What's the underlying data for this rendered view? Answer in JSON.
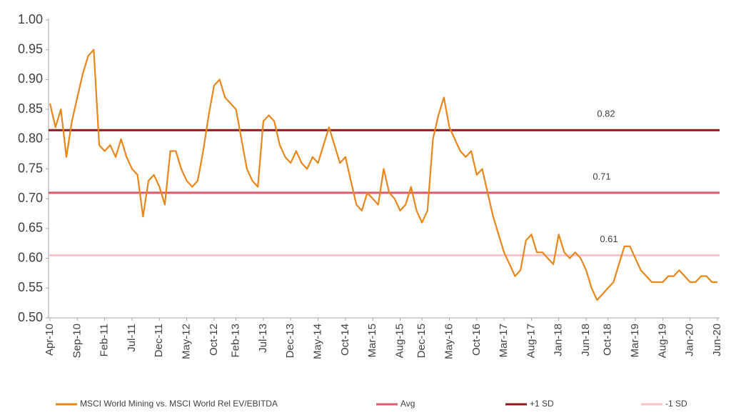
{
  "chart_data": {
    "type": "line",
    "categories": [
      "Apr-10",
      null,
      null,
      null,
      null,
      "Sep-10",
      null,
      null,
      null,
      null,
      "Feb-11",
      null,
      null,
      null,
      null,
      "Jul-11",
      null,
      null,
      null,
      null,
      "Dec-11",
      null,
      null,
      null,
      null,
      "May-12",
      null,
      null,
      null,
      null,
      "Oct-12",
      null,
      null,
      null,
      "Feb-13",
      null,
      null,
      null,
      null,
      "Jul-13",
      null,
      null,
      null,
      null,
      "Dec-13",
      null,
      null,
      null,
      null,
      "May-14",
      null,
      null,
      null,
      null,
      "Oct-14",
      null,
      null,
      null,
      null,
      "Mar-15",
      null,
      null,
      null,
      null,
      "Aug-15",
      null,
      null,
      null,
      "Dec-15",
      null,
      null,
      null,
      null,
      "May-16",
      null,
      null,
      null,
      null,
      "Oct-16",
      null,
      null,
      null,
      null,
      "Mar-17",
      null,
      null,
      null,
      null,
      "Aug-17",
      null,
      null,
      null,
      null,
      "Jan-18",
      null,
      null,
      null,
      null,
      "Jun-18",
      null,
      null,
      null,
      "Oct-18",
      null,
      null,
      null,
      null,
      "Mar-19",
      null,
      null,
      null,
      null,
      "Aug-19",
      null,
      null,
      null,
      null,
      "Jan-20",
      null,
      null,
      null,
      null,
      "Jun-20"
    ],
    "series": [
      {
        "name": "MSCI World Mining vs. MSCI World Rel EV/EBITDA",
        "color": "#e8861a",
        "values": [
          0.86,
          0.82,
          0.85,
          0.77,
          0.83,
          0.87,
          0.91,
          0.94,
          0.95,
          0.79,
          0.78,
          0.79,
          0.77,
          0.8,
          0.77,
          0.75,
          0.74,
          0.67,
          0.73,
          0.74,
          0.72,
          0.69,
          0.78,
          0.78,
          0.75,
          0.73,
          0.72,
          0.73,
          0.78,
          0.84,
          0.89,
          0.9,
          0.87,
          0.86,
          0.85,
          0.8,
          0.75,
          0.73,
          0.72,
          0.83,
          0.84,
          0.83,
          0.79,
          0.77,
          0.76,
          0.78,
          0.76,
          0.75,
          0.77,
          0.76,
          0.79,
          0.82,
          0.79,
          0.76,
          0.77,
          0.73,
          0.69,
          0.68,
          0.71,
          0.7,
          0.69,
          0.75,
          0.71,
          0.7,
          0.68,
          0.69,
          0.72,
          0.68,
          0.66,
          0.68,
          0.8,
          0.84,
          0.87,
          0.82,
          0.8,
          0.78,
          0.77,
          0.78,
          0.74,
          0.75,
          0.71,
          0.67,
          0.64,
          0.61,
          0.59,
          0.57,
          0.58,
          0.63,
          0.64,
          0.61,
          0.61,
          0.6,
          0.59,
          0.64,
          0.61,
          0.6,
          0.61,
          0.6,
          0.58,
          0.55,
          0.53,
          0.54,
          0.55,
          0.56,
          0.59,
          0.62,
          0.62,
          0.6,
          0.58,
          0.57,
          0.56,
          0.56,
          0.56,
          0.57,
          0.57,
          0.58,
          0.57,
          0.56,
          0.56,
          0.57,
          0.57,
          0.56,
          0.56
        ]
      }
    ],
    "lines": [
      {
        "name": "Avg",
        "color": "#dc5b6b",
        "value": 0.71
      },
      {
        "name": "+1 SD",
        "color": "#8c1c1c",
        "value": 0.815,
        "value_label": "0.82"
      },
      {
        "name": "-1 SD",
        "color": "#f5c5cb",
        "value": 0.605,
        "value_label": "0.61"
      }
    ],
    "ylim": [
      0.5,
      1.0
    ],
    "yticks": [
      {
        "value": 0.5,
        "label": "0.50"
      },
      0.55,
      {
        "value": 0.6,
        "label": "0.60"
      },
      0.65,
      {
        "value": 0.7,
        "label": "0.70"
      },
      0.75,
      {
        "value": 0.8,
        "label": "0.80"
      },
      0.85,
      {
        "value": 0.9,
        "label": "0.90"
      },
      0.95,
      {
        "value": 1.0,
        "label": "1.00"
      }
    ],
    "grid": false,
    "legend": "bottom"
  }
}
